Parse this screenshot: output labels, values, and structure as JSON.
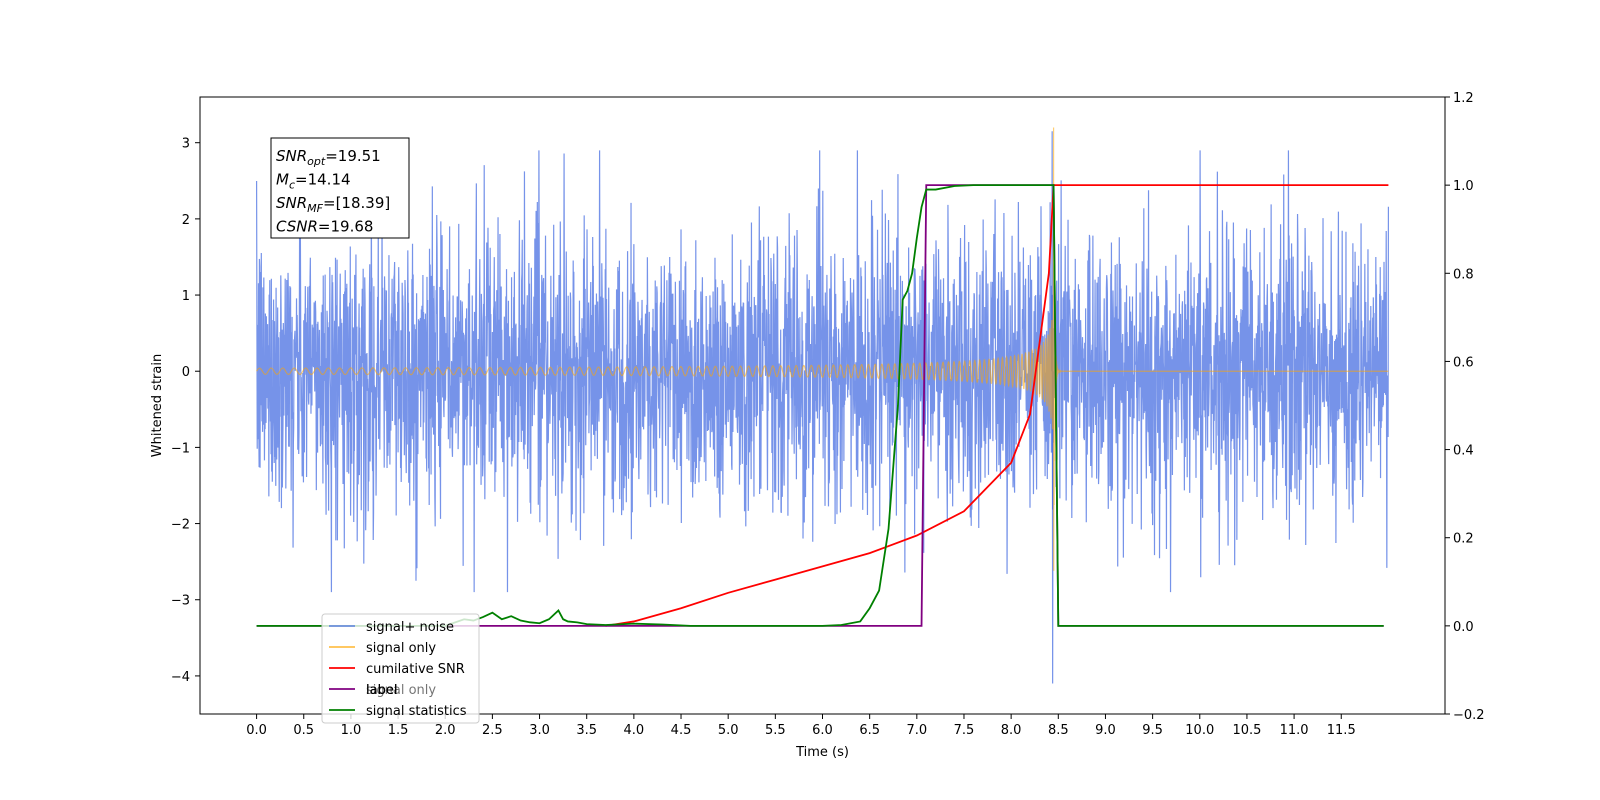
{
  "chart_data": {
    "type": "line",
    "title": "",
    "xlabel": "Time (s)",
    "ylabel": "Whitened strain",
    "xlim": [
      -0.6,
      12.6
    ],
    "ylim": [
      -4.5,
      3.6
    ],
    "y2lim": [
      -0.2,
      1.2
    ],
    "x_ticks": [
      0.0,
      0.5,
      1.0,
      1.5,
      2.0,
      2.5,
      3.0,
      3.5,
      4.0,
      4.5,
      5.0,
      5.5,
      6.0,
      6.5,
      7.0,
      7.5,
      8.0,
      8.5,
      9.0,
      9.5,
      10.0,
      10.5,
      11.0,
      11.5
    ],
    "x_tick_labels": [
      "0.0",
      "0.5",
      "1.0",
      "1.5",
      "2.0",
      "2.5",
      "3.0",
      "3.5",
      "4.0",
      "4.5",
      "5.0",
      "5.5",
      "6.0",
      "6.5",
      "7.0",
      "7.5",
      "8.0",
      "8.5",
      "9.0",
      "9.5",
      "10.0",
      "10.5",
      "11.0",
      "11.5"
    ],
    "y_ticks": [
      -4,
      -3,
      -2,
      -1,
      0,
      1,
      2,
      3
    ],
    "y_tick_labels": [
      "−4",
      "−3",
      "−2",
      "−1",
      "0",
      "1",
      "2",
      "3"
    ],
    "y2_ticks": [
      -0.2,
      0.0,
      0.2,
      0.4,
      0.6,
      0.8,
      1.0,
      1.2
    ],
    "y2_tick_labels": [
      "−0.2",
      "0.0",
      "0.2",
      "0.4",
      "0.6",
      "0.8",
      "1.0",
      "1.2"
    ],
    "grid": false,
    "legend_position": "lower-left",
    "annotation": {
      "lines": [
        {
          "main": "SNR",
          "sub": "opt",
          "rest": "=19.51"
        },
        {
          "main": "M",
          "sub": "c",
          "rest": "=14.14"
        },
        {
          "main": "SNR",
          "sub": "MF",
          "rest": "=[18.39]"
        },
        {
          "main": "CSNR",
          "sub": "",
          "rest": "=19.68"
        }
      ]
    },
    "series": [
      {
        "name": "signal+ noise",
        "axis": "left",
        "color": "#4169e1",
        "description_type": "noise",
        "x_range": [
          0.0,
          12.0
        ],
        "noise_sigma": 1.0,
        "noise_max": 3.15,
        "noise_min": -4.1
      },
      {
        "name": "signal only",
        "axis": "left",
        "color": "#ffa500",
        "description_type": "chirp",
        "x_range": [
          0.0,
          12.0
        ],
        "merger_time": 8.45,
        "peak_amplitude": 3.2
      },
      {
        "name": "cumilative SNR",
        "axis": "right",
        "color": "#ff0000",
        "x": [
          3.7,
          4.0,
          4.5,
          5.0,
          5.5,
          6.0,
          6.5,
          7.0,
          7.5,
          8.0,
          8.2,
          8.4,
          8.45,
          12.0
        ],
        "y": [
          0.0,
          0.01,
          0.04,
          0.075,
          0.105,
          0.135,
          0.165,
          0.205,
          0.26,
          0.37,
          0.48,
          0.8,
          1.0,
          1.0
        ]
      },
      {
        "name": "label",
        "axis": "right",
        "color": "#800080",
        "x": [
          0.0,
          7.05,
          7.1,
          8.45,
          8.5,
          11.95
        ],
        "y": [
          0.0,
          0.0,
          1.0,
          1.0,
          0.0,
          0.0
        ]
      },
      {
        "name": "signal statistics",
        "axis": "right",
        "color": "#008000",
        "x": [
          0.0,
          2.0,
          2.2,
          2.3,
          2.4,
          2.5,
          2.6,
          2.7,
          2.8,
          2.9,
          3.0,
          3.1,
          3.2,
          3.25,
          3.3,
          3.4,
          3.5,
          3.7,
          4.0,
          4.3,
          4.6,
          5.0,
          6.0,
          6.2,
          6.4,
          6.5,
          6.6,
          6.7,
          6.8,
          6.85,
          6.9,
          6.95,
          7.0,
          7.05,
          7.1,
          7.2,
          7.4,
          7.6,
          8.0,
          8.45,
          8.5,
          11.95
        ],
        "y": [
          0.0,
          0.0,
          0.015,
          0.012,
          0.02,
          0.03,
          0.015,
          0.022,
          0.012,
          0.008,
          0.006,
          0.015,
          0.035,
          0.015,
          0.01,
          0.008,
          0.004,
          0.002,
          0.005,
          0.003,
          0.0,
          0.0,
          0.0,
          0.002,
          0.01,
          0.04,
          0.08,
          0.22,
          0.5,
          0.74,
          0.76,
          0.8,
          0.88,
          0.95,
          0.99,
          0.99,
          0.998,
          1.0,
          1.0,
          1.0,
          0.0,
          0.0
        ]
      }
    ],
    "legend": [
      {
        "label": "signal+ noise",
        "color": "#4169e1"
      },
      {
        "label": "signal only",
        "color": "#ffa500"
      },
      {
        "label": "cumilative SNR",
        "color": "#ff0000"
      },
      {
        "label": "label",
        "color": "#800080"
      },
      {
        "label": "signal statistics",
        "color": "#008000"
      }
    ],
    "legend_overlap_text": "signal only"
  }
}
